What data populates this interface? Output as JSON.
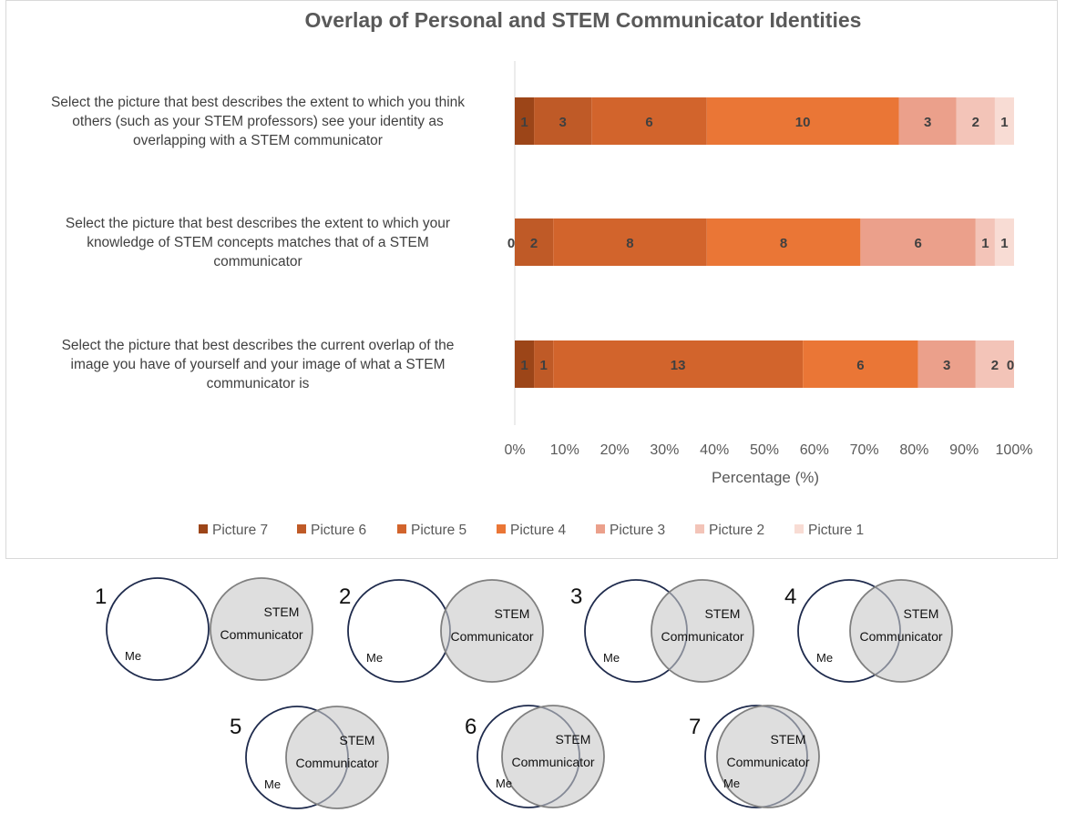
{
  "chart_data": {
    "type": "bar",
    "orientation": "horizontal",
    "stacking": "percent",
    "title": "Overlap of Personal and STEM Communicator Identities",
    "xlabel": "Percentage (%)",
    "ylabel": "",
    "xlim": [
      0,
      100
    ],
    "x_ticks": [
      "0%",
      "10%",
      "20%",
      "30%",
      "40%",
      "50%",
      "60%",
      "70%",
      "80%",
      "90%",
      "100%"
    ],
    "grid": false,
    "legend_position": "bottom",
    "categories": [
      "Select the picture that best describes the extent to which you think others (such as your STEM professors) see your identity as overlapping with a STEM communicator",
      "Select the picture that best describes the extent to which your knowledge of STEM concepts matches that of a STEM communicator",
      "Select the picture that best describes the current overlap of the image you have of yourself and your image of what a STEM communicator is"
    ],
    "category_lines": [
      [
        "Select the picture that best describes the extent to which you think",
        "others (such as your STEM professors) see your identity as",
        "overlapping with a STEM communicator"
      ],
      [
        "Select the picture that best describes the extent to which your",
        "knowledge of STEM concepts matches that of a STEM",
        "communicator"
      ],
      [
        "Select the picture that best describes the current overlap of the",
        "image you have of yourself and your image of what a STEM",
        "communicator is"
      ]
    ],
    "series": [
      {
        "name": "Picture 7",
        "color": "#9c4518",
        "values": [
          1,
          0,
          1
        ]
      },
      {
        "name": "Picture 6",
        "color": "#bf5a27",
        "values": [
          3,
          2,
          1
        ]
      },
      {
        "name": "Picture 5",
        "color": "#d2642c",
        "values": [
          6,
          8,
          13
        ]
      },
      {
        "name": "Picture 4",
        "color": "#ea7636",
        "values": [
          10,
          8,
          6
        ]
      },
      {
        "name": "Picture 3",
        "color": "#eba08b",
        "values": [
          3,
          6,
          3
        ]
      },
      {
        "name": "Picture 2",
        "color": "#f3c4b8",
        "values": [
          2,
          1,
          2
        ]
      },
      {
        "name": "Picture 1",
        "color": "#f8dcd4",
        "values": [
          1,
          1,
          0
        ]
      }
    ]
  },
  "venn": {
    "me_label": "Me",
    "stem_label_line1": "STEM",
    "stem_label_line2": "Communicator",
    "items": [
      {
        "number": "1"
      },
      {
        "number": "2"
      },
      {
        "number": "3"
      },
      {
        "number": "4"
      },
      {
        "number": "5"
      },
      {
        "number": "6"
      },
      {
        "number": "7"
      }
    ]
  }
}
